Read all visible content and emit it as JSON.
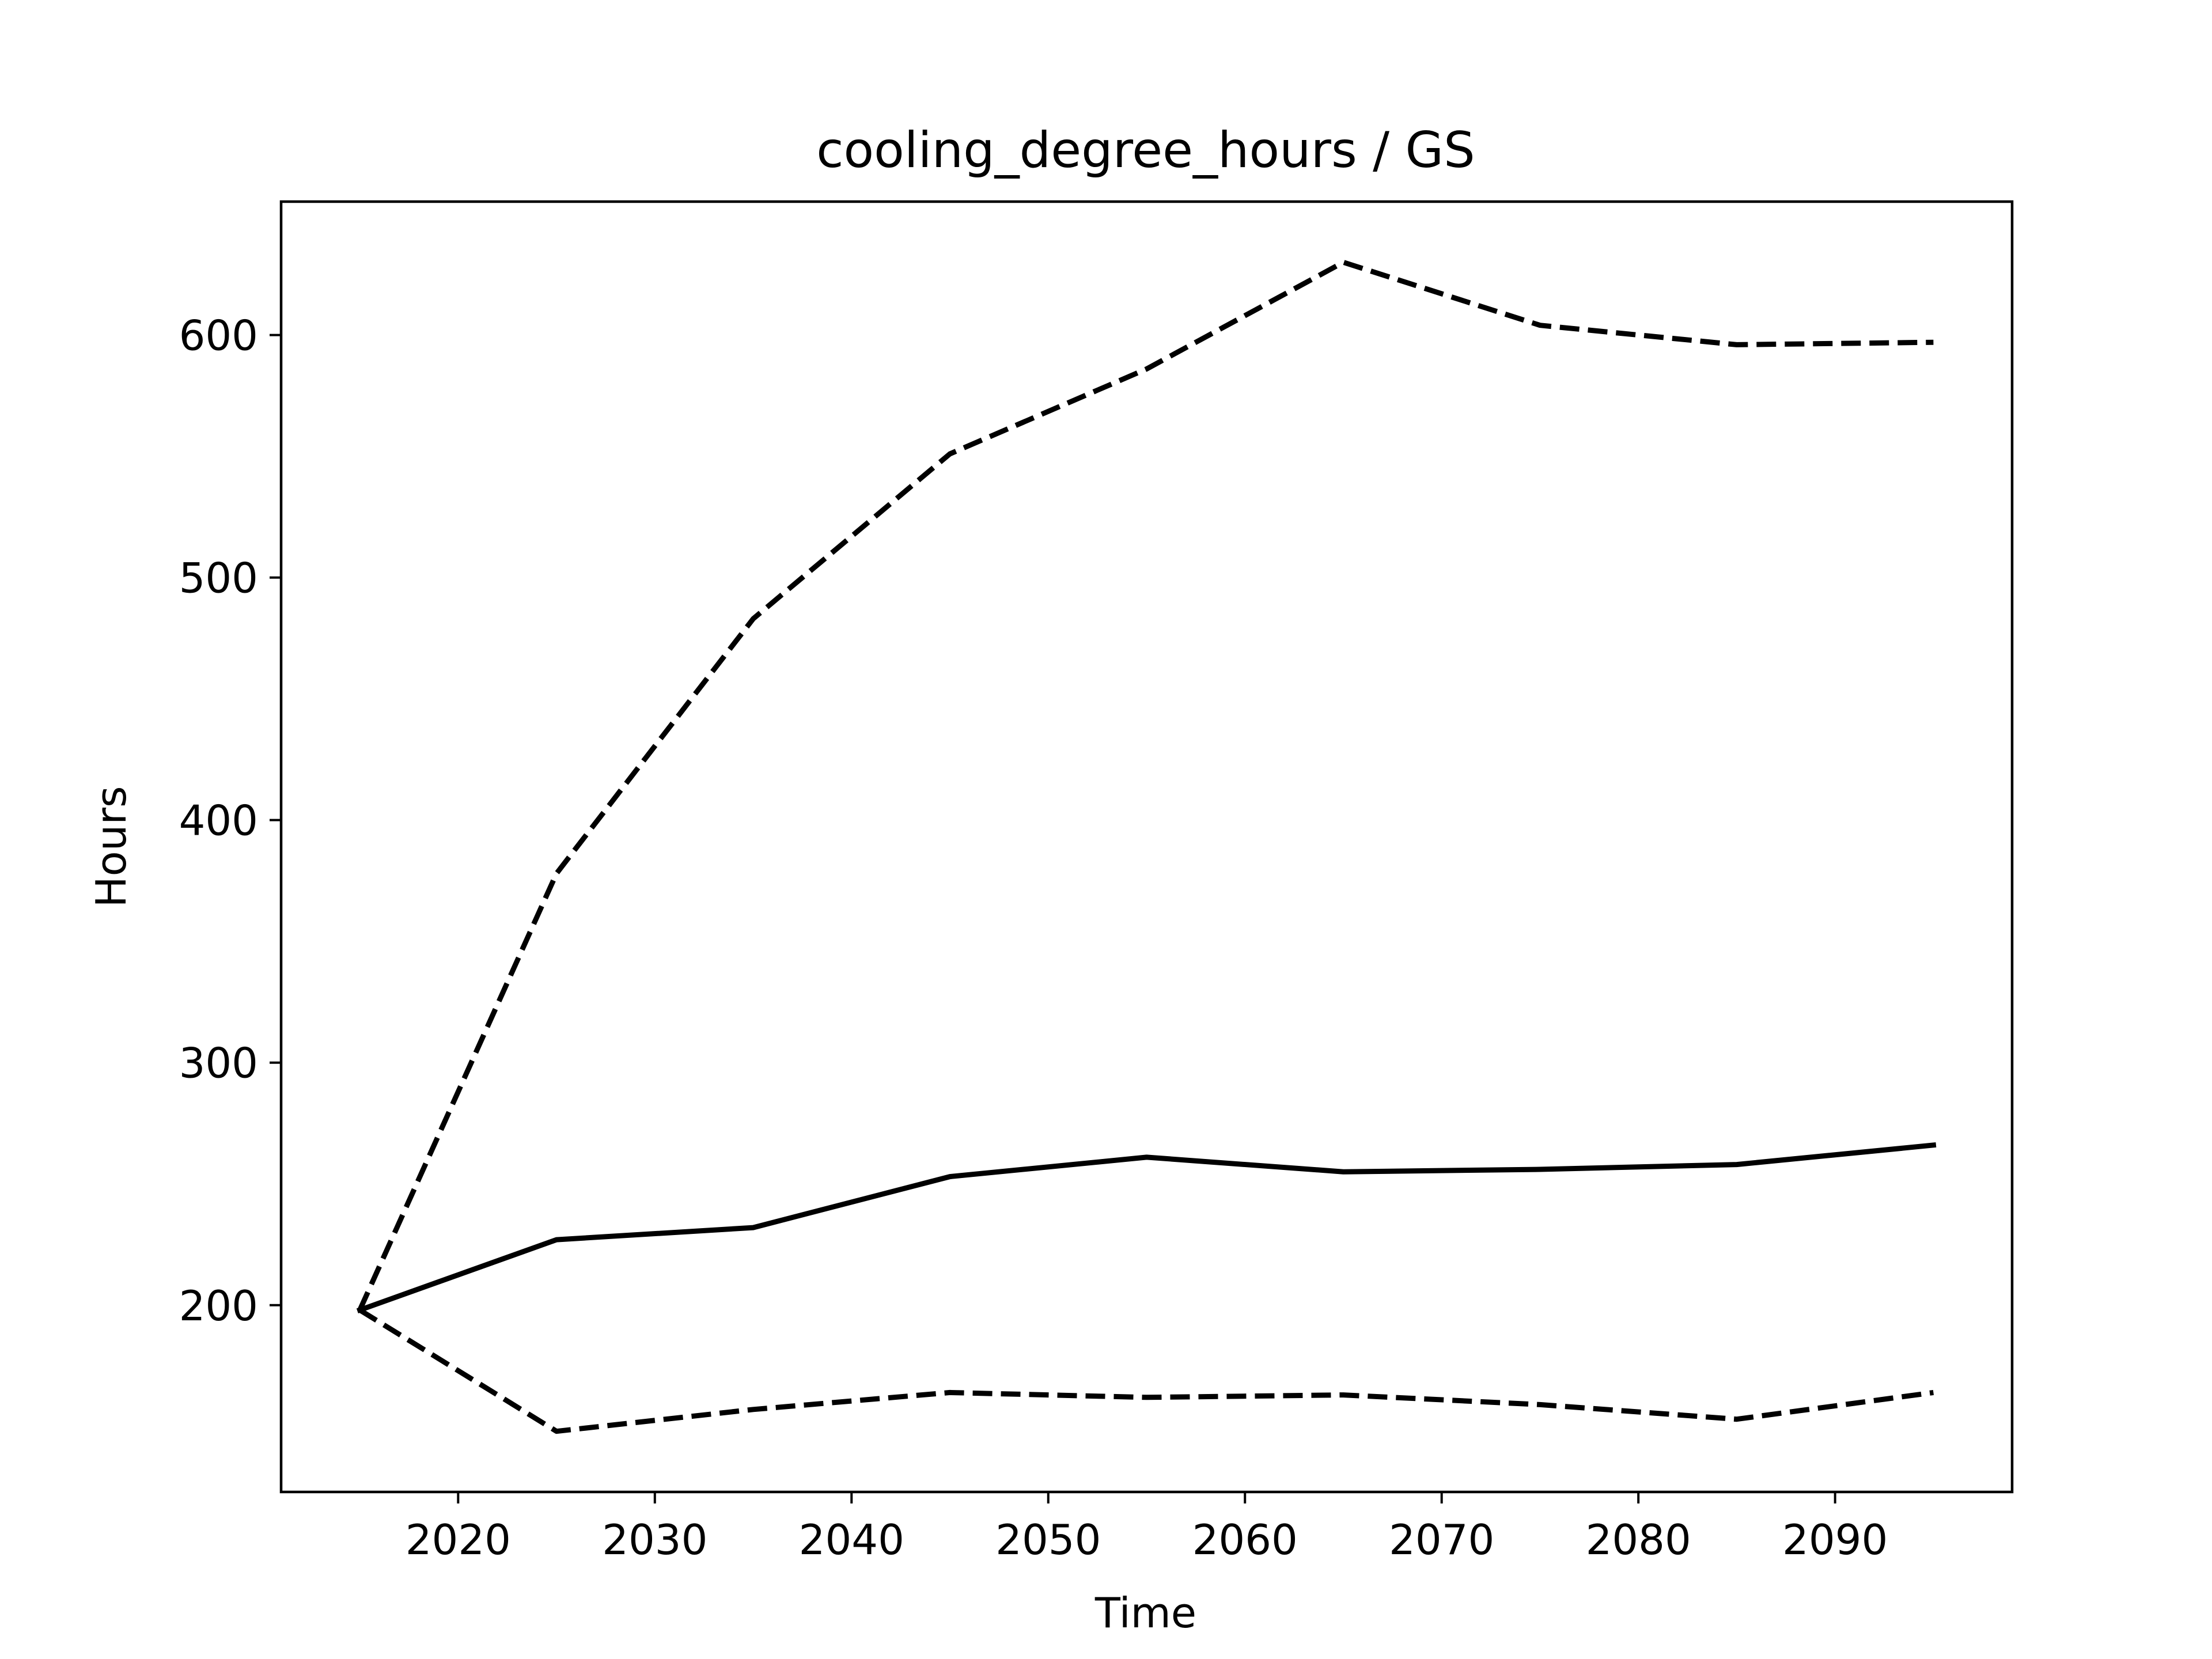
{
  "chart_data": {
    "type": "line",
    "title": "cooling_degree_hours / GS",
    "xlabel": "Time",
    "ylabel": "Hours",
    "xlim": [
      2011,
      2099
    ],
    "ylim": [
      123,
      655
    ],
    "x_ticks": [
      2020,
      2030,
      2040,
      2050,
      2060,
      2070,
      2080,
      2090
    ],
    "y_ticks": [
      200,
      300,
      400,
      500,
      600
    ],
    "grid": false,
    "legend": "none",
    "series": [
      {
        "style": "solid",
        "color": "#000000",
        "x": [
          2015,
          2025,
          2035,
          2045,
          2055,
          2065,
          2075,
          2085,
          2095
        ],
        "values": [
          198,
          227,
          232,
          253,
          261,
          255,
          256,
          258,
          266
        ]
      },
      {
        "style": "dashed",
        "color": "#000000",
        "x": [
          2015,
          2025,
          2035,
          2045,
          2055,
          2065,
          2075,
          2085,
          2095
        ],
        "values": [
          198,
          378,
          483,
          551,
          586,
          630,
          604,
          596,
          597
        ]
      },
      {
        "style": "dashed",
        "color": "#000000",
        "x": [
          2015,
          2025,
          2035,
          2045,
          2055,
          2065,
          2075,
          2085,
          2095
        ],
        "values": [
          198,
          148,
          157,
          164,
          162,
          163,
          159,
          153,
          164
        ]
      }
    ]
  }
}
